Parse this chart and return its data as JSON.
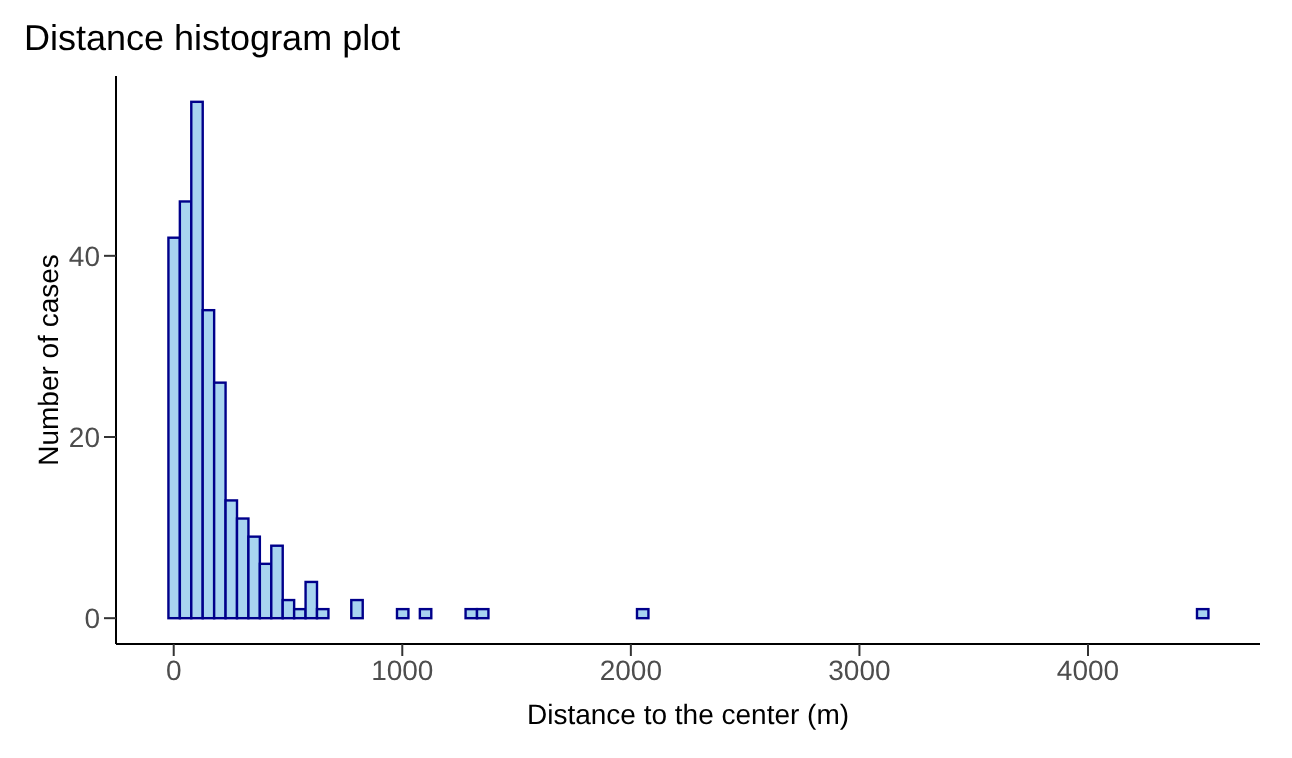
{
  "chart_data": {
    "type": "histogram",
    "title": "Distance histogram plot",
    "xlabel": "Distance to the center (m)",
    "ylabel": "Number of cases",
    "bins": [
      -25,
      25,
      75,
      125,
      175,
      225,
      275,
      325,
      375,
      425,
      475,
      525,
      575,
      625,
      675,
      725,
      775,
      825,
      875,
      925,
      975,
      1025,
      1075,
      1125,
      1175,
      1225,
      1275,
      1325,
      1375,
      1425,
      1475,
      1525,
      1575,
      1625,
      1675,
      1725,
      1775,
      1825,
      1875,
      1925,
      1975,
      2025,
      2075,
      2125,
      2175,
      2225,
      2275,
      2325,
      2375,
      2425,
      2475,
      2525,
      2575,
      2625,
      2675,
      2725,
      2775,
      2825,
      2875,
      2925,
      2975,
      3025,
      3075,
      3125,
      3175,
      3225,
      3275,
      3325,
      3375,
      3425,
      3475,
      3525,
      3575,
      3625,
      3675,
      3725,
      3775,
      3825,
      3875,
      3925,
      3975,
      4025,
      4075,
      4125,
      4175,
      4225,
      4275,
      4325,
      4375,
      4425,
      4475,
      4525
    ],
    "values": [
      42,
      46,
      57,
      34,
      26,
      13,
      11,
      9,
      6,
      8,
      2,
      1,
      4,
      1,
      0,
      0,
      2,
      0,
      0,
      0,
      1,
      0,
      1,
      0,
      0,
      0,
      1,
      1,
      0,
      0,
      0,
      0,
      0,
      0,
      0,
      0,
      0,
      0,
      0,
      0,
      0,
      1,
      0,
      0,
      0,
      0,
      0,
      0,
      0,
      0,
      0,
      0,
      0,
      0,
      0,
      0,
      0,
      0,
      0,
      0,
      0,
      0,
      0,
      0,
      0,
      0,
      0,
      0,
      0,
      0,
      0,
      0,
      0,
      0,
      0,
      0,
      0,
      0,
      0,
      0,
      0,
      0,
      0,
      0,
      0,
      0,
      0,
      0,
      0,
      0,
      1
    ],
    "color": "#a8d4f0",
    "xlim": [
      -252.5,
      4752.5
    ],
    "xticks": [
      0,
      1000,
      2000,
      3000,
      4000
    ],
    "ylim": [
      -2.85,
      59.85
    ],
    "yticks": [
      0,
      20,
      40
    ]
  }
}
